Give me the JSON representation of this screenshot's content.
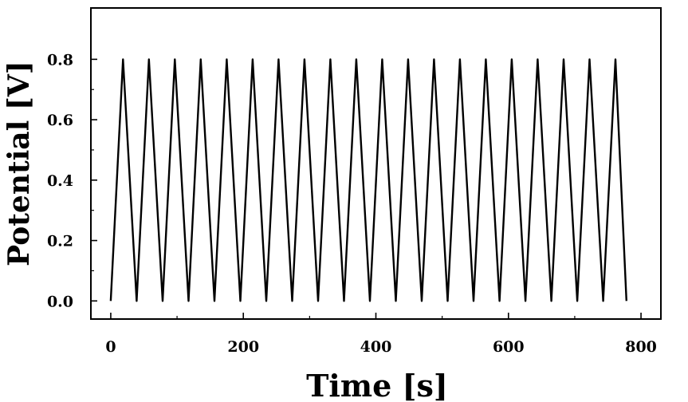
{
  "chart_data": {
    "type": "line",
    "title": "",
    "xlabel": "Time [s]",
    "ylabel": "Potential [V]",
    "xlim": [
      -30,
      830
    ],
    "ylim": [
      -0.06,
      0.97
    ],
    "x_ticks": [
      0,
      200,
      400,
      600,
      800
    ],
    "y_ticks": [
      0.0,
      0.2,
      0.4,
      0.6,
      0.8
    ],
    "x_tick_labels": [
      "0",
      "200",
      "400",
      "600",
      "800"
    ],
    "y_tick_labels": [
      "0.0",
      "0.2",
      "0.4",
      "0.6",
      "0.8"
    ],
    "grid": false,
    "line_color": "#000000",
    "series": [
      {
        "x": [
          0,
          18.5,
          39.1,
          57.6,
          78.2,
          96.7,
          117.3,
          135.8,
          156.4,
          174.9,
          195.5,
          214.0,
          234.6,
          253.1,
          273.7,
          292.2,
          312.8,
          331.3,
          351.9,
          370.4,
          391.0,
          409.5,
          430.1,
          448.6,
          469.2,
          487.7,
          508.3,
          526.8,
          547.4,
          565.9,
          586.5,
          605.0,
          625.6,
          644.1,
          664.7,
          683.2,
          703.8,
          722.3,
          742.9,
          761.4,
          778.0
        ],
        "y": [
          0.0,
          0.8,
          0.0,
          0.8,
          0.0,
          0.8,
          0.0,
          0.8,
          0.0,
          0.8,
          0.0,
          0.8,
          0.0,
          0.8,
          0.0,
          0.8,
          0.0,
          0.8,
          0.0,
          0.8,
          0.0,
          0.8,
          0.0,
          0.8,
          0.0,
          0.8,
          0.0,
          0.8,
          0.0,
          0.8,
          0.0,
          0.8,
          0.0,
          0.8,
          0.0,
          0.8,
          0.0,
          0.8,
          0.0,
          0.8,
          0.0
        ]
      }
    ]
  }
}
